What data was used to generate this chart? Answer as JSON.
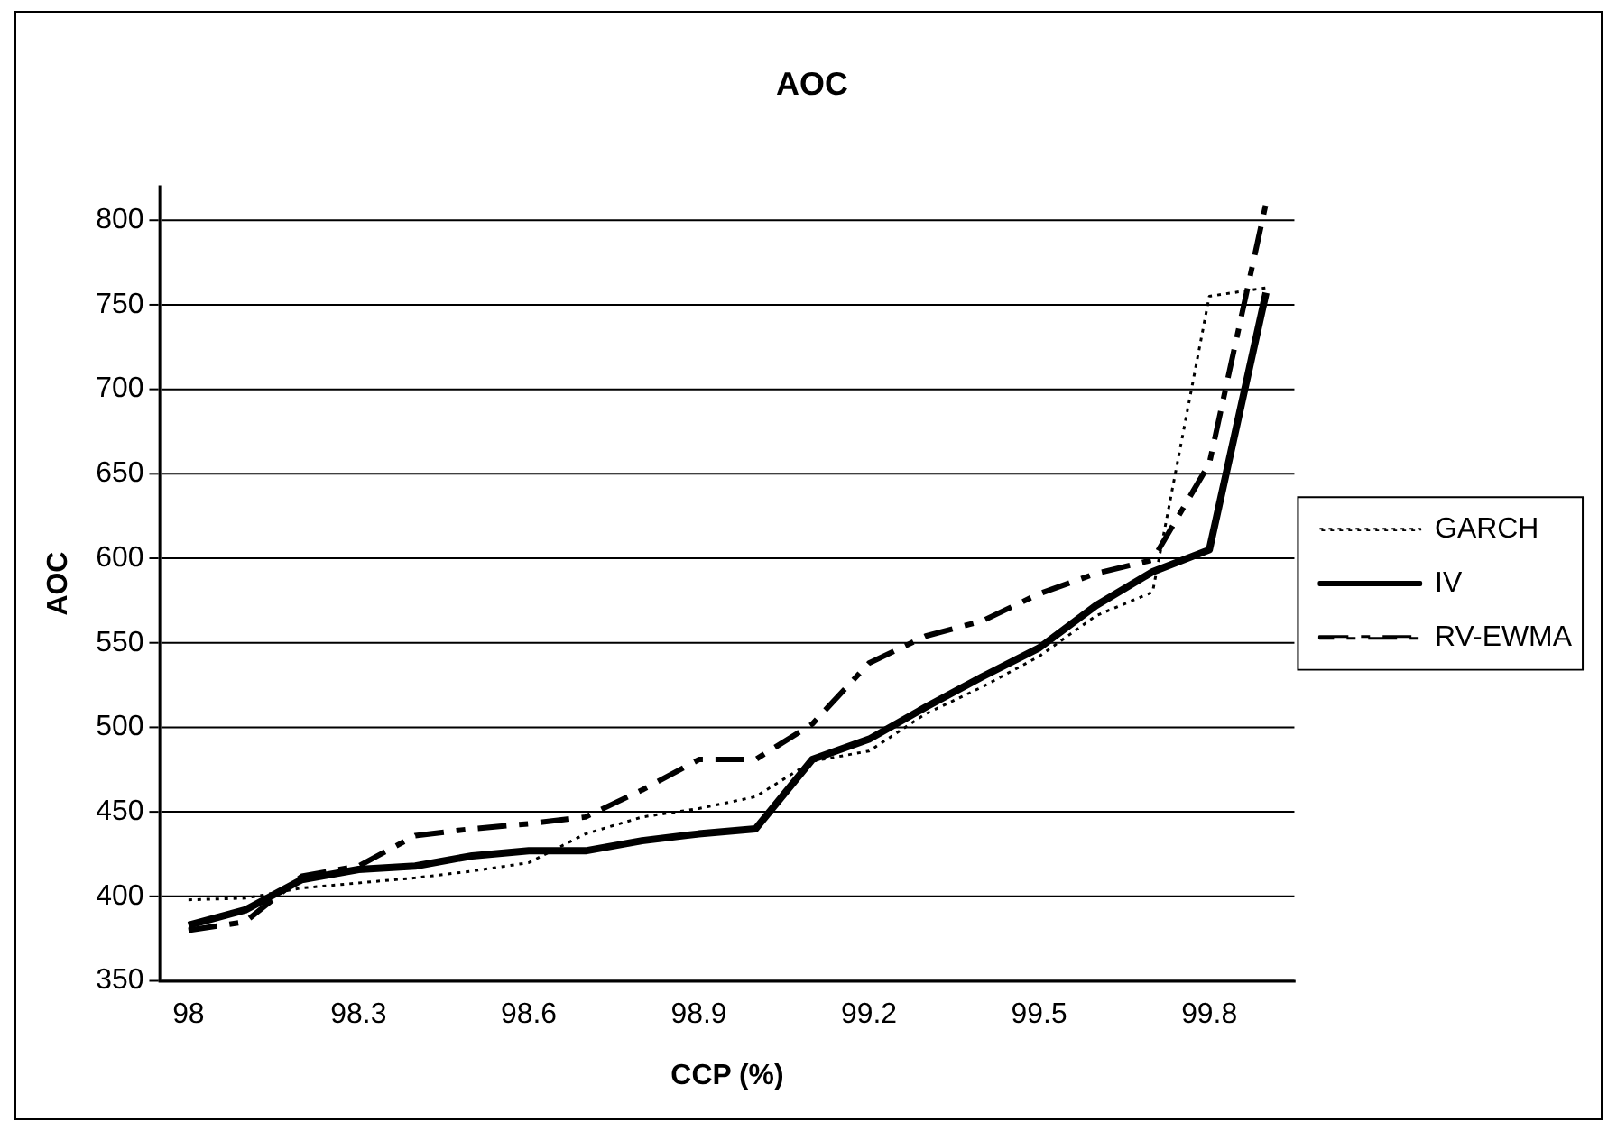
{
  "chart_data": {
    "type": "line",
    "title": "AOC",
    "xlabel": "CCP (%)",
    "ylabel": "AOC",
    "categories": [
      "98",
      null,
      null,
      "98.3",
      null,
      null,
      "98.6",
      null,
      null,
      "98.9",
      null,
      null,
      "99.2",
      null,
      null,
      "99.5",
      null,
      null,
      "99.8",
      null
    ],
    "series": [
      {
        "name": "GARCH",
        "color": "#000000",
        "line_style": "dotted",
        "values": [
          398,
          399,
          405,
          408,
          411,
          415,
          420,
          437,
          447,
          452,
          459,
          480,
          486,
          508,
          524,
          542,
          566,
          580,
          755,
          760
        ]
      },
      {
        "name": "IV",
        "color": "#000000",
        "line_style": "solid",
        "values": [
          383,
          392,
          410,
          416,
          418,
          424,
          427,
          427,
          433,
          437,
          440,
          481,
          493,
          512,
          530,
          547,
          572,
          592,
          605,
          757
        ]
      },
      {
        "name": "RV-EWMA",
        "color": "#000000",
        "line_style": "dashed",
        "values": [
          380,
          385,
          412,
          418,
          436,
          440,
          443,
          447,
          463,
          481,
          481,
          502,
          538,
          554,
          563,
          579,
          591,
          599,
          656,
          810
        ]
      }
    ],
    "ylim": [
      350,
      820
    ],
    "yticks": [
      350,
      400,
      450,
      500,
      550,
      600,
      650,
      700,
      750,
      800
    ],
    "grid": "y",
    "legend": "right",
    "marker": "none"
  }
}
